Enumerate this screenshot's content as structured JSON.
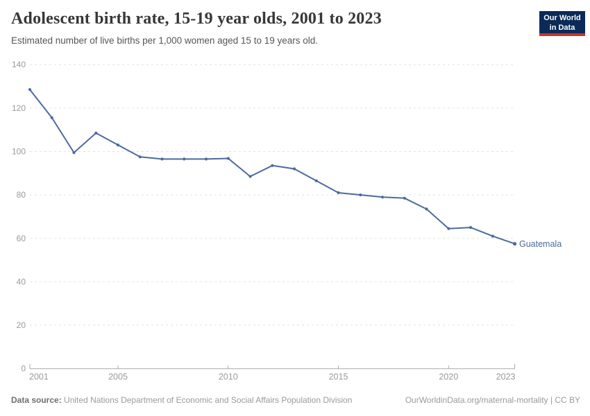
{
  "header": {
    "title": "Adolescent birth rate, 15-19 year olds, 2001 to 2023",
    "subtitle": "Estimated number of live births per 1,000 women aged 15 to 19 years old.",
    "logo": {
      "line1": "Our World",
      "line2": "in Data"
    }
  },
  "footer": {
    "datasource_label": "Data source:",
    "datasource_text": "United Nations Department of Economic and Social Affairs Population Division",
    "attribution": "OurWorldinData.org/maternal-mortality | CC BY"
  },
  "chart_data": {
    "type": "line",
    "title": "Adolescent birth rate, 15-19 year olds, 2001 to 2023",
    "subtitle": "Estimated number of live births per 1,000 women aged 15 to 19 years old.",
    "x": [
      2001,
      2002,
      2003,
      2004,
      2005,
      2006,
      2007,
      2008,
      2009,
      2010,
      2011,
      2012,
      2013,
      2014,
      2015,
      2016,
      2017,
      2018,
      2019,
      2020,
      2021,
      2022,
      2023
    ],
    "series": [
      {
        "name": "Guatemala",
        "values": [
          128.5,
          115.5,
          99.5,
          108.5,
          103,
          97.5,
          96.5,
          96.5,
          96.5,
          96.8,
          88.5,
          93.5,
          92,
          86.5,
          81,
          80,
          79,
          78.5,
          73.5,
          64.5,
          65,
          61,
          57.5
        ]
      }
    ],
    "xlabel": "",
    "ylabel": "",
    "xlim": [
      2001,
      2023
    ],
    "ylim": [
      0,
      140
    ],
    "xticks": [
      2001,
      2005,
      2010,
      2015,
      2020,
      2023
    ],
    "yticks": [
      0,
      20,
      40,
      60,
      80,
      100,
      120,
      140
    ],
    "grid": "horizontal-dashed",
    "legend_position": "end-of-line-label"
  },
  "colors": {
    "line": "#4c6a9c",
    "gridline": "#e2e2e2",
    "axis": "#a8a8a8",
    "tick_label": "#999999",
    "series_label": "#4c6a9c",
    "logo_bg": "#0b2a57",
    "logo_accent": "#cc3029"
  }
}
